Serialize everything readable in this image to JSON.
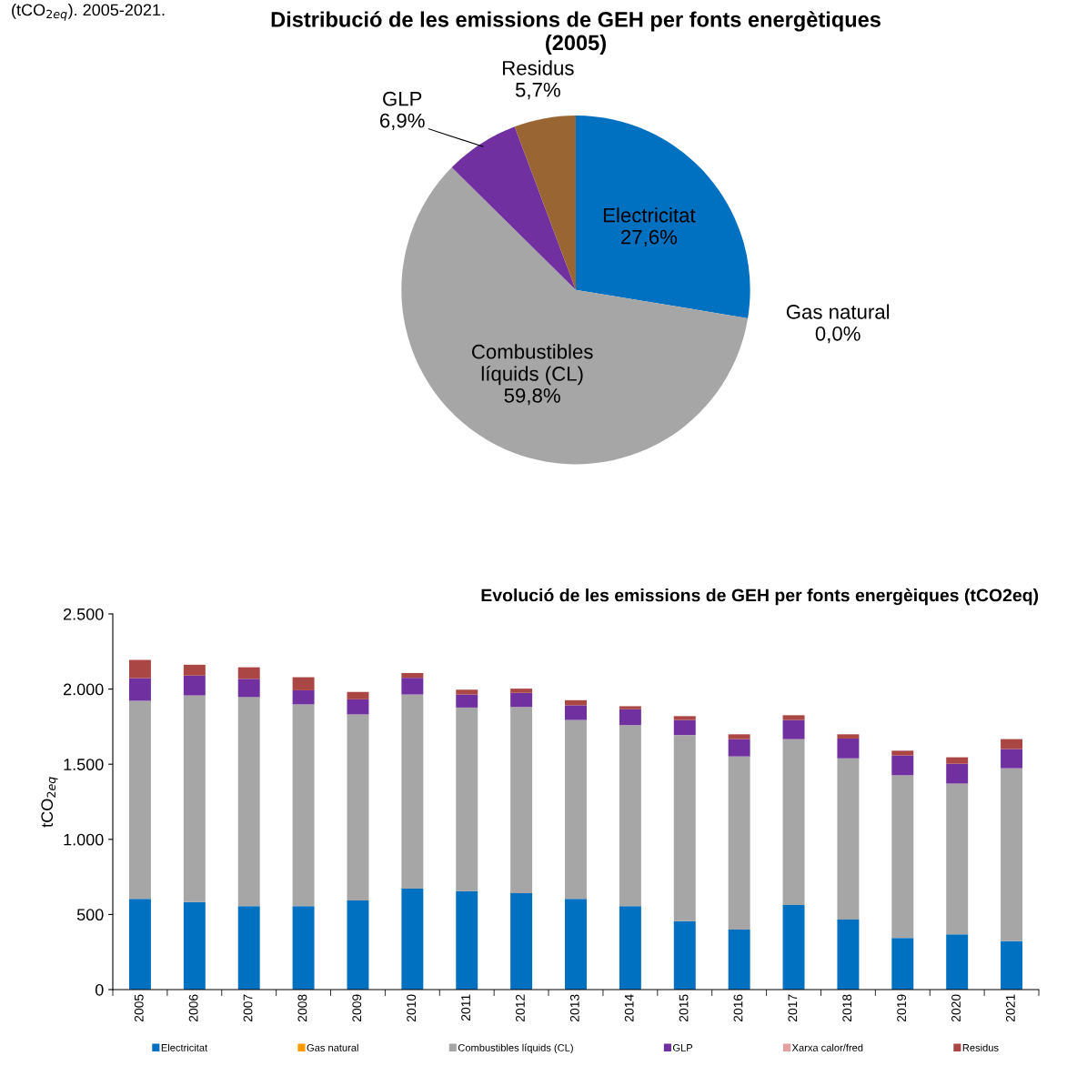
{
  "chart_data": [
    {
      "type": "pie",
      "title": "Distribució de les emissions de GEH per fonts energètiques\n(2005)",
      "annotations": [
        "(tCO$_{2eq}$). 2005-2021."
      ],
      "categories": [
        "Electricitat",
        "Gas natural",
        "Combustibles\nlíquids (CL)",
        "GLP",
        "Residus"
      ],
      "values": [
        27.6,
        0.0,
        59.8,
        6.9,
        5.7
      ],
      "value_labels": [
        "27,6%",
        "0,0%",
        "59,8%",
        "6,9%",
        "5,7%"
      ],
      "colors": [
        "#0070c0",
        "#ff9900",
        "#a6a6a6",
        "#7030a0",
        "#996633"
      ]
    },
    {
      "type": "bar",
      "stacked": true,
      "title": "Evolució de les emissions de GEH per fonts energèiques (tCO2eq)",
      "ylabel": "tCO$_{2eq}$",
      "categories": [
        "2005",
        "2006",
        "2007",
        "2008",
        "2009",
        "2010",
        "2011",
        "2012",
        "2013",
        "2014",
        "2015",
        "2016",
        "2017",
        "2018",
        "2019",
        "2020",
        "2021"
      ],
      "series": [
        {
          "name": "Electricitat",
          "color": "#0070c0",
          "values": [
            604,
            582,
            555,
            555,
            593,
            672,
            655,
            642,
            604,
            555,
            455,
            400,
            563,
            466,
            344,
            368,
            323
          ]
        },
        {
          "name": "Gas natural",
          "color": "#ff9900",
          "values": [
            0,
            0,
            0,
            0,
            0,
            0,
            0,
            0,
            0,
            0,
            0,
            0,
            0,
            0,
            0,
            0,
            0
          ]
        },
        {
          "name": "Combustibles líquids (CL)",
          "color": "#a6a6a6",
          "values": [
            1318,
            1376,
            1392,
            1343,
            1239,
            1292,
            1222,
            1239,
            1190,
            1205,
            1239,
            1152,
            1104,
            1073,
            1082,
            1003,
            1150
          ]
        },
        {
          "name": "GLP",
          "color": "#7030a0",
          "values": [
            151,
            132,
            121,
            94,
            100,
            111,
            87,
            94,
            98,
            106,
            100,
            115,
            127,
            132,
            132,
            132,
            128
          ]
        },
        {
          "name": "Xarxa calor/fred",
          "color": "#e6a0a0",
          "values": [
            0,
            0,
            0,
            0,
            0,
            0,
            0,
            0,
            0,
            0,
            0,
            0,
            0,
            0,
            0,
            0,
            0
          ]
        },
        {
          "name": "Residus",
          "color": "#aa4643",
          "values": [
            121,
            72,
            77,
            87,
            49,
            32,
            32,
            28,
            34,
            20,
            26,
            32,
            32,
            28,
            32,
            43,
            66
          ]
        }
      ],
      "ylim": [
        0,
        2500
      ],
      "yticks": [
        {
          "value": 0,
          "label": "0"
        },
        {
          "value": 500,
          "label": "500"
        },
        {
          "value": 1000,
          "label": "1.000"
        },
        {
          "value": 1500,
          "label": "1.500"
        },
        {
          "value": 2000,
          "label": "2.000"
        },
        {
          "value": 2500,
          "label": "2.500"
        }
      ],
      "grid": false,
      "legend": "bottom"
    }
  ]
}
